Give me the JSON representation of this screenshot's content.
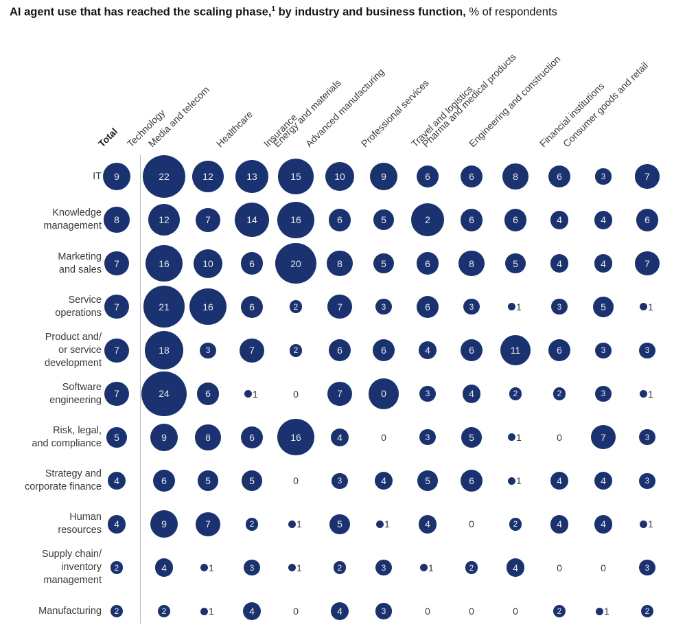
{
  "title": {
    "bold_before_sup": "AI agent use that has reached the scaling phase,",
    "superscript": "1",
    "bold_after_sup": " by industry and business function,",
    "regular": " % of respondents"
  },
  "colors": {
    "bubble": "#1a3270",
    "bubble_label": "#e8e9f1",
    "text": "#3a3a3a",
    "divider": "#b9b9b9"
  },
  "chart_data": {
    "type": "bubble-matrix",
    "unit": "% of respondents",
    "legend_position": "none",
    "columns": [
      "Total",
      "Technology",
      "Media and telecom",
      "Healthcare",
      "Insurance",
      "Energy and materials",
      "Advanced manufacturing",
      "Professional services",
      "Travel and logistics",
      "Pharma and medical products",
      "Engineering and construction",
      "Financial institutions",
      "Consumer goods and retail"
    ],
    "rows": [
      {
        "function": "IT",
        "label_lines": [
          "IT"
        ],
        "total": 9,
        "values": [
          22,
          12,
          13,
          15,
          10,
          9,
          6,
          6,
          8,
          6,
          3,
          7
        ]
      },
      {
        "function": "Knowledge management",
        "label_lines": [
          "Knowledge",
          "management"
        ],
        "total": 8,
        "values": [
          12,
          7,
          14,
          16,
          6,
          5,
          2,
          6,
          6,
          4,
          4,
          6
        ]
      },
      {
        "function": "Marketing and sales",
        "label_lines": [
          "Marketing",
          "and sales"
        ],
        "total": 7,
        "values": [
          16,
          10,
          6,
          20,
          8,
          5,
          6,
          8,
          5,
          4,
          4,
          7
        ]
      },
      {
        "function": "Service operations",
        "label_lines": [
          "Service",
          "operations"
        ],
        "total": 7,
        "values": [
          21,
          16,
          6,
          2,
          7,
          3,
          6,
          3,
          1,
          3,
          5,
          1
        ]
      },
      {
        "function": "Product and/or service development",
        "label_lines": [
          "Product and/",
          "or service",
          "development"
        ],
        "total": 7,
        "values": [
          18,
          3,
          7,
          2,
          6,
          6,
          4,
          6,
          11,
          6,
          3,
          3
        ]
      },
      {
        "function": "Software engineering",
        "label_lines": [
          "Software",
          "engineering"
        ],
        "total": 7,
        "values": [
          24,
          6,
          1,
          0,
          7,
          0,
          3,
          4,
          2,
          2,
          3,
          1
        ]
      },
      {
        "function": "Risk, legal, and compliance",
        "label_lines": [
          "Risk, legal,",
          "and compliance"
        ],
        "total": 5,
        "values": [
          9,
          8,
          6,
          16,
          4,
          0,
          3,
          5,
          1,
          0,
          7,
          3
        ]
      },
      {
        "function": "Strategy and corporate finance",
        "label_lines": [
          "Strategy and",
          "corporate finance"
        ],
        "total": 4,
        "values": [
          6,
          5,
          5,
          0,
          3,
          4,
          5,
          6,
          1,
          4,
          4,
          3
        ]
      },
      {
        "function": "Human resources",
        "label_lines": [
          "Human",
          "resources"
        ],
        "total": 4,
        "values": [
          9,
          7,
          2,
          1,
          5,
          1,
          4,
          0,
          2,
          4,
          4,
          1
        ]
      },
      {
        "function": "Supply chain/inventory management",
        "label_lines": [
          "Supply chain/",
          "inventory",
          "management"
        ],
        "total": 2,
        "values": [
          4,
          1,
          3,
          1,
          2,
          3,
          1,
          2,
          4,
          0,
          0,
          3
        ]
      },
      {
        "function": "Manufacturing",
        "label_lines": [
          "Manufacturing"
        ],
        "total": 2,
        "values": [
          2,
          1,
          4,
          0,
          4,
          3,
          0,
          0,
          0,
          2,
          1,
          2
        ]
      }
    ],
    "display_anomalies": [
      {
        "row_index": 1,
        "col_index": 7,
        "row": "Knowledge management",
        "column": "Professional services",
        "shown_label": "2",
        "bubble_sized_as": 13
      },
      {
        "row_index": 5,
        "col_index": 6,
        "row": "Software engineering",
        "column": "Advanced manufacturing",
        "shown_label": "0",
        "bubble_sized_as": 11
      }
    ]
  }
}
